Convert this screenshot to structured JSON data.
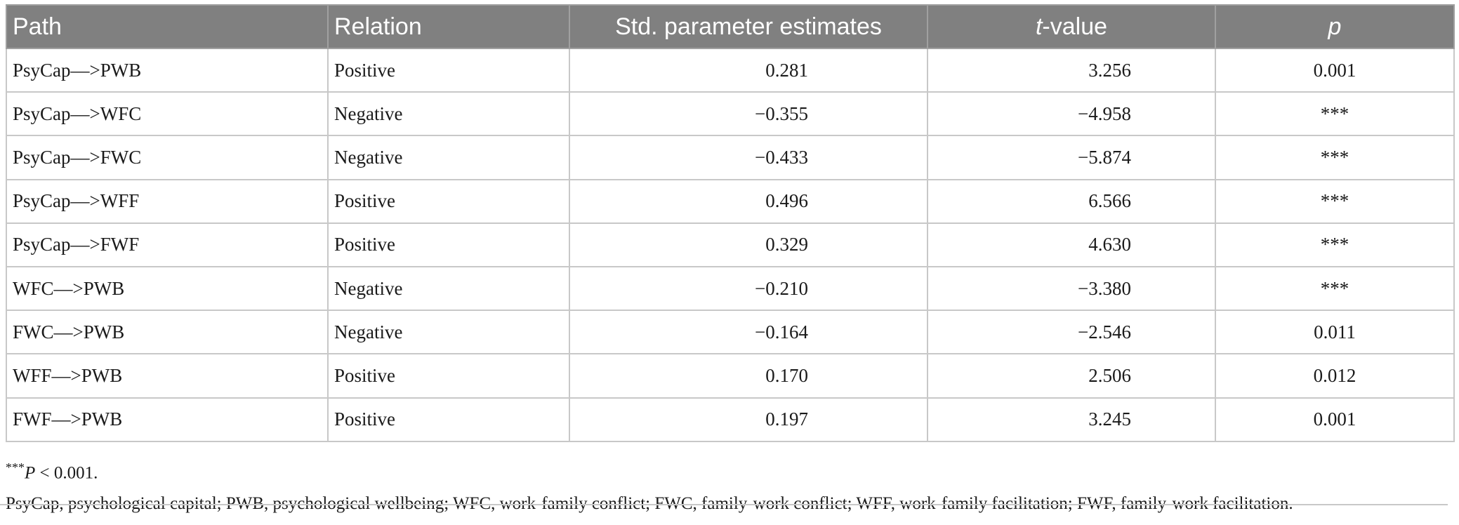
{
  "table": {
    "headers": {
      "path": "Path",
      "relation": "Relation",
      "estimates": "Std. parameter estimates",
      "t_italic": "t",
      "t_rest": "-value",
      "p": "p"
    },
    "rows": [
      {
        "path": "PsyCap—>PWB",
        "relation": "Positive",
        "estimate": "0.281",
        "t": "3.256",
        "p": "0.001"
      },
      {
        "path": "PsyCap—>WFC",
        "relation": "Negative",
        "estimate": "−0.355",
        "t": "−4.958",
        "p": "***"
      },
      {
        "path": "PsyCap—>FWC",
        "relation": "Negative",
        "estimate": "−0.433",
        "t": "−5.874",
        "p": "***"
      },
      {
        "path": "PsyCap—>WFF",
        "relation": "Positive",
        "estimate": "0.496",
        "t": "6.566",
        "p": "***"
      },
      {
        "path": "PsyCap—>FWF",
        "relation": "Positive",
        "estimate": "0.329",
        "t": "4.630",
        "p": "***"
      },
      {
        "path": "WFC—>PWB",
        "relation": "Negative",
        "estimate": "−0.210",
        "t": "−3.380",
        "p": "***"
      },
      {
        "path": "FWC—>PWB",
        "relation": "Negative",
        "estimate": "−0.164",
        "t": "−2.546",
        "p": "0.011"
      },
      {
        "path": "WFF—>PWB",
        "relation": "Positive",
        "estimate": "0.170",
        "t": "2.506",
        "p": "0.012"
      },
      {
        "path": "FWF—>PWB",
        "relation": "Positive",
        "estimate": "0.197",
        "t": "3.245",
        "p": "0.001"
      }
    ]
  },
  "notes": {
    "sig_stars": "***",
    "sig_p": "P",
    "sig_rest": " < 0.001.",
    "abbreviations": "PsyCap, psychological capital; PWB, psychological wellbeing; WFC, work-family conflict; FWC, family-work conflict; WFF, work-family facilitation; FWF, family-work facilitation."
  }
}
